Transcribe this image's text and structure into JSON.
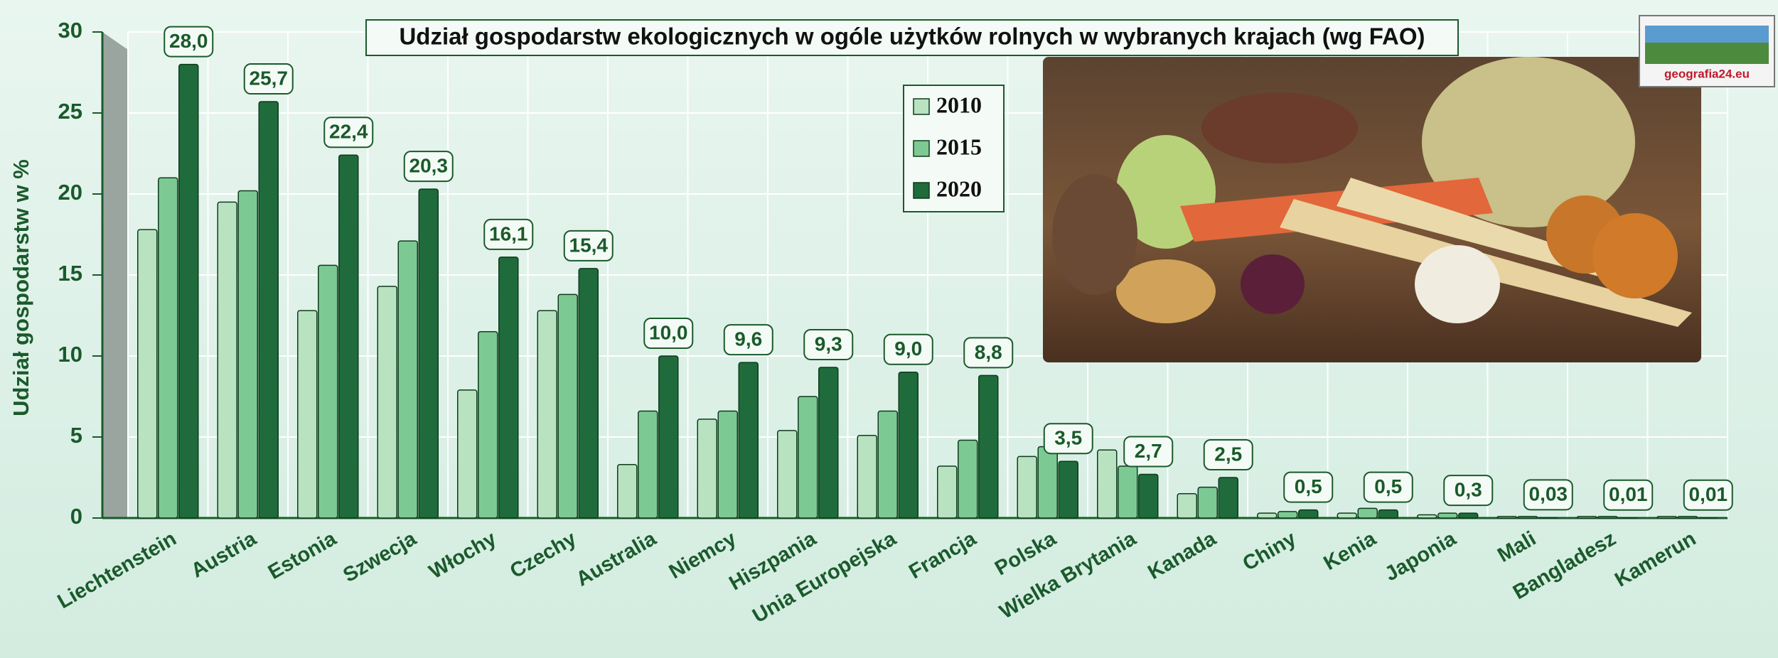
{
  "logo": "geografia24.eu",
  "chart_data": {
    "type": "bar",
    "title": "Udział gospodarstw ekologicznych w ogóle użytków rolnych w wybranych krajach (wg FAO)",
    "y_label": "Udział gospodarstw w %",
    "categories": [
      "Liechtenstein",
      "Austria",
      "Estonia",
      "Szwecja",
      "Włochy",
      "Czechy",
      "Australia",
      "Niemcy",
      "Hiszpania",
      "Unia Europejska",
      "Francja",
      "Polska",
      "Wielka Brytania",
      "Kanada",
      "Chiny",
      "Kenia",
      "Japonia",
      "Mali",
      "Bangladesz",
      "Kamerun"
    ],
    "series": [
      {
        "name": "2010",
        "color": "#b9e2c1",
        "values": [
          17.8,
          19.5,
          12.8,
          14.3,
          7.9,
          12.8,
          3.3,
          6.1,
          5.4,
          5.1,
          3.2,
          3.8,
          4.2,
          1.5,
          0.3,
          0.3,
          0.2,
          0.1,
          0.1,
          0.1
        ]
      },
      {
        "name": "2015",
        "color": "#7dc994",
        "values": [
          21.0,
          20.2,
          15.6,
          17.1,
          11.5,
          13.8,
          6.6,
          6.6,
          7.5,
          6.6,
          4.8,
          4.4,
          3.2,
          1.9,
          0.4,
          0.6,
          0.3,
          0.1,
          0.1,
          0.1
        ]
      },
      {
        "name": "2020",
        "color": "#1f6b3b",
        "values": [
          28.0,
          25.7,
          22.4,
          20.3,
          16.1,
          15.4,
          10.0,
          9.6,
          9.3,
          9.0,
          8.8,
          3.5,
          2.7,
          2.5,
          0.5,
          0.5,
          0.3,
          0.03,
          0.01,
          0.01
        ],
        "value_labels": [
          "28,0",
          "25,7",
          "22,4",
          "20,3",
          "16,1",
          "15,4",
          "10,0",
          "9,6",
          "9,3",
          "9,0",
          "8,8",
          "3,5",
          "2,7",
          "2,5",
          "0,5",
          "0,5",
          "0,3",
          "0,03",
          "0,01",
          "0,01"
        ]
      }
    ],
    "ylim": [
      0,
      30
    ],
    "yticks": [
      0,
      5,
      10,
      15,
      20,
      25,
      30
    ],
    "grid": true
  }
}
